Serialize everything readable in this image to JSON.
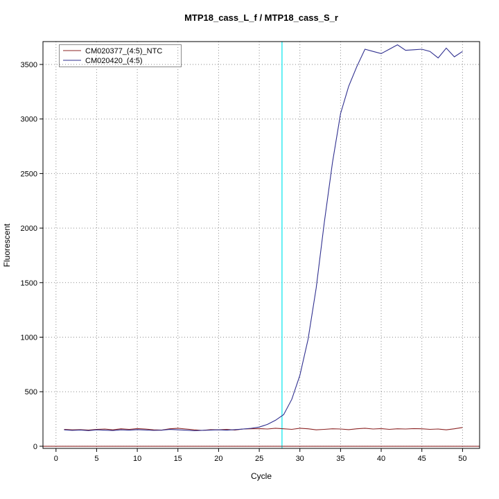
{
  "window": {
    "background_color": "#ffffff"
  },
  "chart_data": {
    "type": "line",
    "title": "MTP18_cass_L_f / MTP18_cass_S_r",
    "xlabel": "Cycle",
    "ylabel": "Fluorescent",
    "xlim": [
      -1.6,
      52.1
    ],
    "ylim": [
      -20,
      3710
    ],
    "xticks": [
      0,
      5,
      10,
      15,
      20,
      25,
      30,
      35,
      40,
      45,
      50
    ],
    "yticks": [
      0,
      500,
      1000,
      1500,
      2000,
      2500,
      3000,
      3500
    ],
    "grid": "dotted",
    "grid_color": "#8a8a8a",
    "threshold_line": {
      "x": 27.8,
      "color": "#00E5EE"
    },
    "cycles": [
      1,
      2,
      3,
      4,
      5,
      6,
      7,
      8,
      9,
      10,
      11,
      12,
      13,
      14,
      15,
      16,
      17,
      18,
      19,
      20,
      21,
      22,
      23,
      24,
      25,
      26,
      27,
      28,
      29,
      30,
      31,
      32,
      33,
      34,
      35,
      36,
      37,
      38,
      39,
      40,
      41,
      42,
      43,
      44,
      45,
      46,
      47,
      48,
      49,
      50
    ],
    "series": [
      {
        "name": "CM020377_(4:5)_NTC",
        "color": "#8B2323",
        "values": [
          155,
          150,
          152,
          148,
          155,
          158,
          150,
          160,
          155,
          162,
          158,
          150,
          148,
          160,
          165,
          158,
          150,
          145,
          152,
          150,
          155,
          148,
          158,
          160,
          162,
          158,
          165,
          160,
          155,
          165,
          160,
          150,
          155,
          160,
          158,
          152,
          160,
          165,
          158,
          162,
          155,
          160,
          158,
          162,
          160,
          155,
          158,
          150,
          160,
          172
        ]
      },
      {
        "name": "CM020420_(4:5)",
        "color": "#2F2F8F",
        "values": [
          150,
          146,
          149,
          143,
          150,
          147,
          144,
          150,
          147,
          152,
          149,
          145,
          147,
          154,
          150,
          147,
          142,
          146,
          148,
          150,
          147,
          152,
          157,
          164,
          176,
          200,
          238,
          290,
          430,
          650,
          980,
          1450,
          2050,
          2600,
          3050,
          3300,
          3480,
          3640,
          3620,
          3600,
          3640,
          3680,
          3630,
          3635,
          3640,
          3620,
          3560,
          3650,
          3570,
          3620
        ]
      },
      {
        "name": "zero-baseline",
        "color": "#8B2323",
        "x": [
          -1.6,
          52.1
        ],
        "values": [
          0,
          0
        ]
      }
    ],
    "legend": {
      "position": "top-left",
      "entries": [
        {
          "label": "CM020377_(4:5)_NTC",
          "color": "#8B2323"
        },
        {
          "label": "CM020420_(4:5)",
          "color": "#2F2F8F"
        }
      ]
    }
  }
}
